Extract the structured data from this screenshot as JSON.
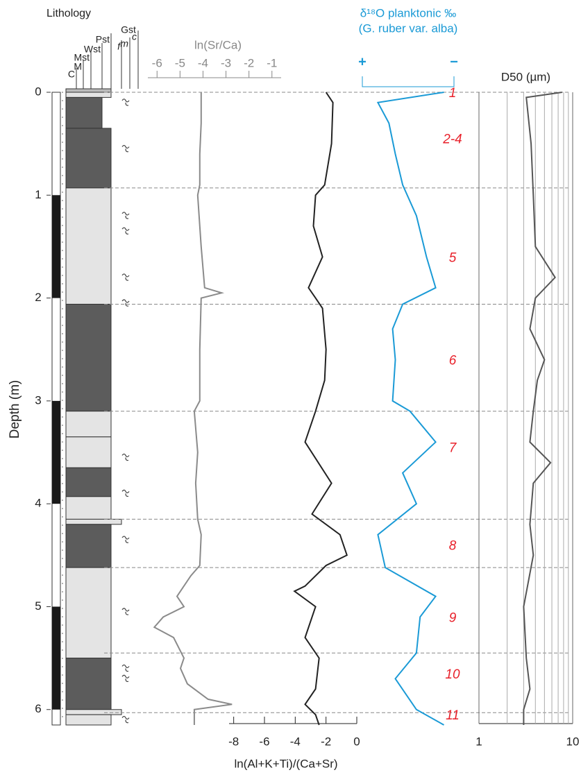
{
  "chart_data": [
    {
      "type": "lithology",
      "title": "Lithology",
      "ylabel": "Depth (m)",
      "ylim": [
        0,
        6.15
      ],
      "yticks": [
        0,
        1,
        2,
        3,
        4,
        5,
        6
      ],
      "textures": [
        "C",
        "M",
        "Mst",
        "Wst",
        "Pst",
        "f",
        "m",
        "c"
      ],
      "texture_group_label": "Gst",
      "colors": {
        "dark": "#5c5c5c",
        "light": "#e4e4e4",
        "polarity": "#1a1a1a",
        "boundary": "#888888"
      },
      "layers": [
        {
          "top": 0,
          "bottom": 0.05,
          "texture": 4,
          "shade": "light"
        },
        {
          "top": 0.05,
          "bottom": 0.35,
          "texture": 3,
          "shade": "dark"
        },
        {
          "top": 0.35,
          "bottom": 0.93,
          "texture": 4,
          "shade": "dark"
        },
        {
          "top": 0.93,
          "bottom": 2.06,
          "texture": 4,
          "shade": "light"
        },
        {
          "top": 2.06,
          "bottom": 3.1,
          "texture": 4,
          "shade": "dark"
        },
        {
          "top": 3.1,
          "bottom": 3.35,
          "texture": 4,
          "shade": "light"
        },
        {
          "top": 3.35,
          "bottom": 3.65,
          "texture": 4,
          "shade": "light"
        },
        {
          "top": 3.65,
          "bottom": 3.93,
          "texture": 4,
          "shade": "dark"
        },
        {
          "top": 3.93,
          "bottom": 4.15,
          "texture": 4,
          "shade": "light"
        },
        {
          "top": 4.15,
          "bottom": 4.2,
          "texture": 5,
          "shade": "light"
        },
        {
          "top": 4.2,
          "bottom": 4.62,
          "texture": 4,
          "shade": "dark"
        },
        {
          "top": 4.62,
          "bottom": 5.5,
          "texture": 4,
          "shade": "light"
        },
        {
          "top": 5.5,
          "bottom": 6.0,
          "texture": 4,
          "shade": "dark"
        },
        {
          "top": 6.0,
          "bottom": 6.05,
          "texture": 5,
          "shade": "light"
        },
        {
          "top": 6.05,
          "bottom": 6.15,
          "texture": 4,
          "shade": "light"
        }
      ],
      "polarity": [
        {
          "top": 1.0,
          "bottom": 2.0
        },
        {
          "top": 3.0,
          "bottom": 4.0
        },
        {
          "top": 5.0,
          "bottom": 6.0
        }
      ],
      "bioturbation": [
        0.1,
        0.55,
        1.2,
        1.35,
        1.8,
        2.05,
        3.55,
        3.9,
        4.35,
        5.05,
        5.6,
        5.7,
        6.1
      ],
      "boundaries": [
        0,
        0.93,
        2.06,
        3.1,
        4.15,
        4.62,
        5.45,
        6.03
      ]
    },
    {
      "type": "line",
      "xlabel": "ln(Sr/Ca)",
      "xlim": [
        -6.4,
        -0.6
      ],
      "xticks": [
        -6,
        -5,
        -4,
        -3,
        -2,
        -1
      ],
      "x_axis": "top",
      "color": "#8a8a8a",
      "depth": [
        0,
        0.3,
        0.6,
        0.9,
        1.0,
        1.5,
        1.9,
        1.95,
        2.0,
        2.5,
        3.0,
        3.1,
        3.5,
        3.8,
        4.15,
        4.3,
        4.6,
        4.7,
        4.9,
        5.0,
        5.1,
        5.2,
        5.3,
        5.5,
        5.6,
        5.75,
        5.9,
        5.95,
        6.0,
        6.15
      ],
      "values": [
        -4.08,
        -4.08,
        -4.14,
        -4.14,
        -4.23,
        -4.08,
        -3.93,
        -3.19,
        -4.08,
        -4.14,
        -4.14,
        -4.38,
        -4.23,
        -4.32,
        -4.23,
        -4.08,
        -4.14,
        -4.53,
        -5.13,
        -4.83,
        -5.73,
        -6.12,
        -5.28,
        -4.83,
        -4.98,
        -4.68,
        -3.78,
        -2.74,
        -4.38,
        -4.38
      ]
    },
    {
      "type": "line",
      "xlabel": "ln(Al+K+Ti)/(Ca+Sr)",
      "xlim": [
        -8.3,
        0
      ],
      "xticks": [
        -8,
        -6,
        -4,
        -2,
        0
      ],
      "x_axis": "bottom",
      "color": "#222222",
      "depth": [
        0,
        0.1,
        0.5,
        0.9,
        1.0,
        1.3,
        1.6,
        1.9,
        2.0,
        2.1,
        2.5,
        2.8,
        3.1,
        3.4,
        3.8,
        4.1,
        4.3,
        4.5,
        4.6,
        4.8,
        4.85,
        5.0,
        5.3,
        5.5,
        5.8,
        5.95,
        6.05,
        6.15
      ],
      "values": [
        -2.0,
        -1.55,
        -1.64,
        -2.09,
        -2.68,
        -2.82,
        -2.23,
        -3.14,
        -2.68,
        -2.23,
        -2.0,
        -2.09,
        -2.68,
        -3.36,
        -1.64,
        -2.91,
        -1.09,
        -0.64,
        -2.0,
        -3.36,
        -4.05,
        -2.68,
        -3.36,
        -2.45,
        -2.68,
        -3.36,
        -2.68,
        -2.45
      ]
    },
    {
      "type": "line",
      "title": [
        "δ¹⁸O planktonic ‰",
        "(G. ruber var. alba)"
      ],
      "xlim": [
        0,
        1
      ],
      "xticks": [
        {
          "value": 0,
          "label": "+"
        },
        {
          "value": 1,
          "label": "−"
        }
      ],
      "x_axis": "bracket",
      "color": "#1a9ad6",
      "depth": [
        0,
        0.1,
        0.3,
        0.6,
        0.9,
        1.2,
        1.6,
        1.9,
        2.06,
        2.3,
        2.6,
        3.0,
        3.1,
        3.4,
        3.7,
        4.0,
        4.3,
        4.62,
        4.9,
        5.1,
        5.45,
        5.7,
        6.0,
        6.15
      ],
      "values": [
        0.89,
        0.17,
        0.29,
        0.36,
        0.44,
        0.59,
        0.7,
        0.8,
        0.44,
        0.33,
        0.36,
        0.33,
        0.52,
        0.8,
        0.44,
        0.59,
        0.17,
        0.25,
        0.8,
        0.63,
        0.59,
        0.36,
        0.59,
        0.89
      ],
      "annotations": [
        {
          "text": "1",
          "depth": 0
        },
        {
          "text": "2-4",
          "depth": 0.45
        },
        {
          "text": "5",
          "depth": 1.6
        },
        {
          "text": "6",
          "depth": 2.6
        },
        {
          "text": "7",
          "depth": 3.45
        },
        {
          "text": "8",
          "depth": 4.4
        },
        {
          "text": "9",
          "depth": 5.1
        },
        {
          "text": "10",
          "depth": 5.65
        },
        {
          "text": "11",
          "depth": 6.05
        }
      ],
      "annotation_color": "#e8202a"
    },
    {
      "type": "line",
      "title": "D50 (µm)",
      "log": true,
      "xlim": [
        1,
        10
      ],
      "xticks": [
        1,
        10
      ],
      "minor_grid": [
        2,
        3,
        4,
        5,
        6,
        7,
        8,
        9
      ],
      "x_axis": "bottom",
      "color": "#555555",
      "depth": [
        0,
        0.05,
        0.5,
        1.0,
        1.5,
        1.8,
        2.0,
        2.3,
        2.6,
        2.8,
        3.1,
        3.4,
        3.6,
        3.8,
        4.2,
        4.5,
        5.0,
        5.5,
        5.8,
        6.0,
        6.15
      ],
      "values": [
        7.7,
        3.2,
        3.6,
        3.8,
        4.0,
        6.5,
        4.0,
        3.5,
        5.0,
        4.2,
        3.8,
        3.5,
        5.8,
        3.8,
        3.5,
        3.8,
        3.0,
        3.2,
        3.5,
        3.0,
        3.0
      ]
    }
  ]
}
